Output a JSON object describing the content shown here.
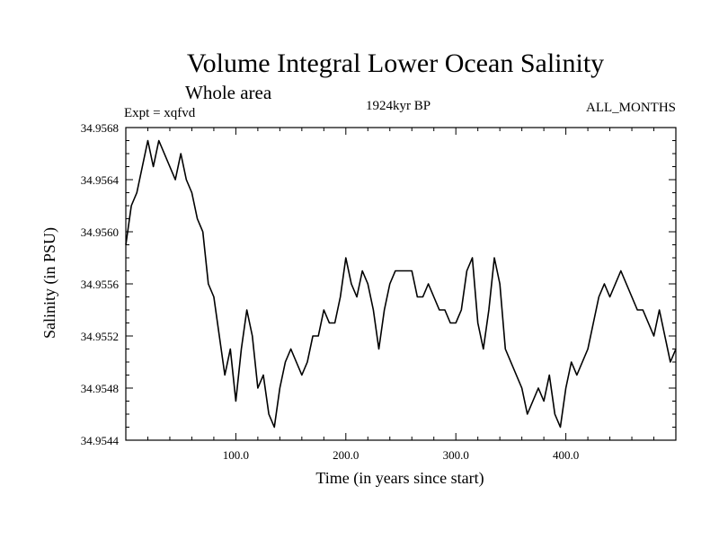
{
  "chart_data": {
    "type": "line",
    "title": "Volume Integral Lower Ocean Salinity",
    "subtitle": "Whole area",
    "left_label": "Expt = xqfvd",
    "center_label": "1924kyr BP",
    "right_label": "ALL_MONTHS",
    "xlabel": "Time (in years since start)",
    "ylabel": "Salinity (in PSU)",
    "xlim": [
      0,
      500
    ],
    "ylim": [
      34.9544,
      34.9568
    ],
    "x_ticks": [
      100,
      200,
      300,
      400
    ],
    "x_tick_labels": [
      "100.0",
      "200.0",
      "300.0",
      "400.0"
    ],
    "y_ticks": [
      34.9544,
      34.9548,
      34.9552,
      34.9556,
      34.956,
      34.9564,
      34.9568
    ],
    "y_tick_labels": [
      "34.9544",
      "34.9548",
      "34.9552",
      "34.9556",
      "34.9560",
      "34.9564",
      "34.9568"
    ],
    "series": [
      {
        "name": "salinity",
        "x": [
          0,
          5,
          10,
          15,
          20,
          25,
          30,
          35,
          40,
          45,
          50,
          55,
          60,
          65,
          70,
          75,
          80,
          85,
          90,
          95,
          100,
          105,
          110,
          115,
          120,
          125,
          130,
          135,
          140,
          145,
          150,
          155,
          160,
          165,
          170,
          175,
          180,
          185,
          190,
          195,
          200,
          205,
          210,
          215,
          220,
          225,
          230,
          235,
          240,
          245,
          250,
          255,
          260,
          265,
          270,
          275,
          280,
          285,
          290,
          295,
          300,
          305,
          310,
          315,
          320,
          325,
          330,
          335,
          340,
          345,
          350,
          355,
          360,
          365,
          370,
          375,
          380,
          385,
          390,
          395,
          400,
          405,
          410,
          415,
          420,
          425,
          430,
          435,
          440,
          445,
          450,
          455,
          460,
          465,
          470,
          475,
          480,
          485,
          490,
          495,
          500
        ],
        "values": [
          34.9559,
          34.9562,
          34.9563,
          34.9565,
          34.9567,
          34.9565,
          34.9567,
          34.9566,
          34.9565,
          34.9564,
          34.9566,
          34.9564,
          34.9563,
          34.9561,
          34.956,
          34.9556,
          34.9555,
          34.9552,
          34.9549,
          34.9551,
          34.9547,
          34.9551,
          34.9554,
          34.9552,
          34.9548,
          34.9549,
          34.9546,
          34.9545,
          34.9548,
          34.955,
          34.9551,
          34.955,
          34.9549,
          34.955,
          34.9552,
          34.9552,
          34.9554,
          34.9553,
          34.9553,
          34.9555,
          34.9558,
          34.9556,
          34.9555,
          34.9557,
          34.9556,
          34.9554,
          34.9551,
          34.9554,
          34.9556,
          34.9557,
          34.9557,
          34.9557,
          34.9557,
          34.9555,
          34.9555,
          34.9556,
          34.9555,
          34.9554,
          34.9554,
          34.9553,
          34.9553,
          34.9554,
          34.9557,
          34.9558,
          34.9553,
          34.9551,
          34.9554,
          34.9558,
          34.9556,
          34.9551,
          34.955,
          34.9549,
          34.9548,
          34.9546,
          34.9547,
          34.9548,
          34.9547,
          34.9549,
          34.9546,
          34.9545,
          34.9548,
          34.955,
          34.9549,
          34.955,
          34.9551,
          34.9553,
          34.9555,
          34.9556,
          34.9555,
          34.9556,
          34.9557,
          34.9556,
          34.9555,
          34.9554,
          34.9554,
          34.9553,
          34.9552,
          34.9554,
          34.9552,
          34.955,
          34.9551
        ]
      }
    ]
  }
}
